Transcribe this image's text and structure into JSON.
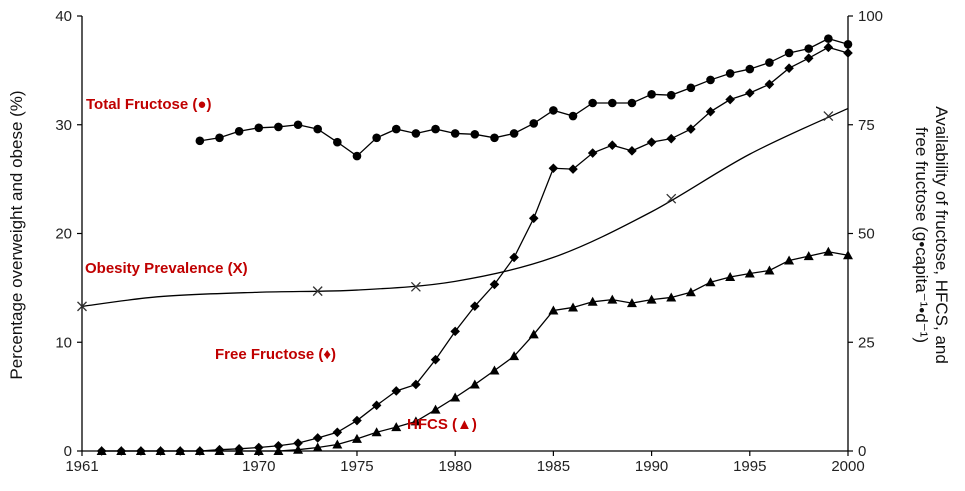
{
  "chart_data": {
    "type": "line",
    "title": "",
    "xlabel": "",
    "ylabel_left": "Percentage overweight and obese (%)",
    "ylabel_right_line1": "Availability of fructose, HFCS, and",
    "ylabel_right_line2": "free fructose (g•capita⁻¹•d⁻¹)",
    "xlim": [
      1961,
      2000
    ],
    "ylim_left": [
      0,
      40
    ],
    "ylim_right": [
      0,
      100
    ],
    "x_ticks": [
      1961,
      1970,
      1975,
      1980,
      1985,
      1990,
      1995,
      2000
    ],
    "x_tick_labels": [
      "1961",
      "1970",
      "1975",
      "1980",
      "1985",
      "1990",
      "1995",
      "2000"
    ],
    "y_left_ticks": [
      0,
      10,
      20,
      30,
      40
    ],
    "y_left_tick_labels": [
      "0",
      "10",
      "20",
      "30",
      "40"
    ],
    "y_right_ticks": [
      0,
      25,
      50,
      75,
      100
    ],
    "y_right_tick_labels": [
      "0",
      "25",
      "50",
      "75",
      "100"
    ],
    "grid": false,
    "series": [
      {
        "key": "total",
        "label": "Total Fructose (●)",
        "marker": "circle",
        "axis": "right",
        "x": [
          1967,
          1968,
          1969,
          1970,
          1971,
          1972,
          1973,
          1974,
          1975,
          1976,
          1977,
          1978,
          1979,
          1980,
          1981,
          1982,
          1983,
          1984,
          1985,
          1986,
          1987,
          1988,
          1989,
          1990,
          1991,
          1992,
          1993,
          1994,
          1995,
          1996,
          1997,
          1998,
          1999,
          2000
        ],
        "y": [
          71.3,
          72.0,
          73.5,
          74.3,
          74.5,
          75.0,
          74.0,
          71.0,
          67.8,
          72.0,
          74.0,
          73.0,
          74.0,
          73.0,
          72.8,
          72.0,
          73.0,
          75.3,
          78.3,
          77.0,
          80.0,
          80.0,
          80.0,
          82.0,
          81.8,
          83.5,
          85.3,
          86.8,
          87.8,
          89.3,
          91.5,
          92.5,
          94.8,
          93.5
        ]
      },
      {
        "key": "free",
        "label": "Free Fructose (♦)",
        "marker": "diamond",
        "axis": "right",
        "x": [
          1962,
          1963,
          1964,
          1965,
          1966,
          1967,
          1968,
          1969,
          1970,
          1971,
          1972,
          1973,
          1974,
          1975,
          1976,
          1977,
          1978,
          1979,
          1980,
          1981,
          1982,
          1983,
          1984,
          1985,
          1986,
          1987,
          1988,
          1989,
          1990,
          1991,
          1992,
          1993,
          1994,
          1995,
          1996,
          1997,
          1998,
          1999,
          2000
        ],
        "y": [
          0,
          0,
          0,
          0,
          0,
          0,
          0.3,
          0.5,
          0.8,
          1.2,
          1.8,
          3.0,
          4.3,
          7.0,
          10.5,
          13.8,
          15.3,
          21.0,
          27.5,
          33.3,
          38.3,
          44.5,
          53.5,
          65.0,
          64.8,
          68.5,
          70.3,
          69.0,
          71.0,
          71.8,
          74.0,
          78.0,
          80.8,
          82.3,
          84.3,
          88.0,
          90.3,
          92.8,
          91.5
        ]
      },
      {
        "key": "hfcs",
        "label": "HFCS (▲)",
        "marker": "triangle",
        "axis": "right",
        "x": [
          1962,
          1963,
          1964,
          1965,
          1966,
          1967,
          1968,
          1969,
          1970,
          1971,
          1972,
          1973,
          1974,
          1975,
          1976,
          1977,
          1978,
          1979,
          1980,
          1981,
          1982,
          1983,
          1984,
          1985,
          1986,
          1987,
          1988,
          1989,
          1990,
          1991,
          1992,
          1993,
          1994,
          1995,
          1996,
          1997,
          1998,
          1999,
          2000
        ],
        "y": [
          0,
          0,
          0,
          0,
          0,
          0,
          0,
          0,
          0,
          0,
          0.3,
          0.8,
          1.5,
          2.8,
          4.3,
          5.5,
          6.8,
          9.5,
          12.3,
          15.3,
          18.5,
          21.8,
          26.8,
          32.3,
          33.0,
          34.3,
          34.8,
          34.0,
          34.8,
          35.3,
          36.5,
          38.8,
          40.0,
          40.8,
          41.5,
          43.8,
          44.8,
          45.8,
          45.0
        ]
      },
      {
        "key": "obesity",
        "label": "Obesity Prevalence (X)",
        "marker": "x",
        "axis": "left",
        "x": [
          1961,
          1965,
          1970,
          1975,
          1980,
          1985,
          1990,
          1995,
          2000
        ],
        "y": [
          13.3,
          14.2,
          14.6,
          14.8,
          15.6,
          17.8,
          22.0,
          27.3,
          31.5
        ],
        "marker_x": [
          1961,
          1973,
          1978,
          1991,
          1999
        ],
        "marker_y": [
          13.3,
          14.7,
          15.1,
          23.2,
          30.8
        ]
      }
    ]
  }
}
